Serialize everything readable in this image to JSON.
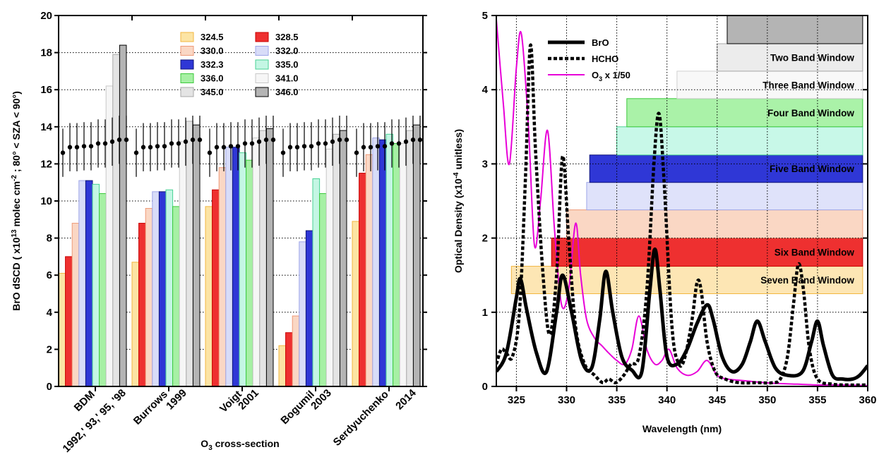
{
  "chart_data": [
    {
      "type": "bar",
      "xlabel": "O3 cross-section",
      "ylabel": "BrO dSCD ( x10^13 molec cm^-2 ; 80° < SZA < 90°)",
      "ylim": [
        0,
        20
      ],
      "yticks": [
        0,
        2,
        4,
        6,
        8,
        10,
        12,
        14,
        16,
        18,
        20
      ],
      "grid": "horizontal dotted",
      "legend_position": "top-center",
      "categories": [
        {
          "name": "BDM",
          "year": "1992,' 93,' 95, '98"
        },
        {
          "name": "Burrows",
          "year": "1999"
        },
        {
          "name": "Voigt",
          "year": "2001"
        },
        {
          "name": "Bogumil",
          "year": "2003"
        },
        {
          "name": "Serdyuchenko",
          "year": "2014"
        }
      ],
      "series": [
        {
          "name": "324.5",
          "fill": "#fce4a4",
          "edge": "#f2b640",
          "values": [
            6.1,
            6.7,
            9.7,
            2.2,
            8.9
          ]
        },
        {
          "name": "328.5",
          "fill": "#ee3030",
          "edge": "#c80000",
          "values": [
            7.0,
            8.8,
            10.6,
            2.9,
            11.5
          ]
        },
        {
          "name": "330.0",
          "fill": "#fad7c4",
          "edge": "#ee9a78",
          "values": [
            8.8,
            9.6,
            11.8,
            3.8,
            12.5
          ]
        },
        {
          "name": "332.0",
          "fill": "#d8dcf8",
          "edge": "#9ea6e8",
          "values": [
            11.1,
            10.5,
            12.9,
            7.8,
            13.4
          ]
        },
        {
          "name": "332.3",
          "fill": "#2f37d6",
          "edge": "#10167a",
          "values": [
            11.1,
            10.5,
            12.9,
            8.4,
            13.3
          ]
        },
        {
          "name": "335.0",
          "fill": "#c4f6e4",
          "edge": "#48d294",
          "values": [
            10.9,
            10.6,
            12.6,
            11.2,
            13.6
          ]
        },
        {
          "name": "336.0",
          "fill": "#a6f0a4",
          "edge": "#3cc93c",
          "values": [
            10.4,
            9.7,
            12.2,
            10.4,
            13.1
          ]
        },
        {
          "name": "341.0",
          "fill": "#f6f6f6",
          "edge": "#c8c8c8",
          "values": [
            16.2,
            13.2,
            13.4,
            12.8,
            13.1
          ]
        },
        {
          "name": "345.0",
          "fill": "#e4e4e4",
          "edge": "#a8a8a8",
          "values": [
            17.9,
            14.3,
            13.8,
            13.6,
            13.8
          ]
        },
        {
          "name": "346.0",
          "fill": "#b4b4b4",
          "edge": "#000000",
          "values": [
            18.4,
            14.1,
            13.9,
            13.8,
            14.1
          ]
        }
      ],
      "markers": {
        "values": [
          [
            12.6,
            12.9,
            12.9,
            12.95,
            12.95,
            13.1,
            13.1,
            13.2,
            13.3,
            13.3
          ],
          [
            12.6,
            12.9,
            12.9,
            12.95,
            12.95,
            13.1,
            13.1,
            13.2,
            13.3,
            13.3
          ],
          [
            12.6,
            12.9,
            12.9,
            12.95,
            12.95,
            13.1,
            13.1,
            13.2,
            13.3,
            13.3
          ],
          [
            12.6,
            12.9,
            12.9,
            12.95,
            12.95,
            13.1,
            13.1,
            13.2,
            13.3,
            13.3
          ],
          [
            12.6,
            12.9,
            12.9,
            12.95,
            12.95,
            13.1,
            13.1,
            13.2,
            13.3,
            13.3
          ]
        ],
        "error": 1.3
      }
    },
    {
      "type": "line",
      "xlabel": "Wavelength (nm)",
      "ylabel": "Optical Density (x10^-4 unitless)",
      "xlim": [
        323,
        360
      ],
      "ylim": [
        0,
        5
      ],
      "xticks": [
        325,
        330,
        335,
        340,
        345,
        350,
        355,
        360
      ],
      "yticks": [
        0,
        1,
        2,
        3,
        4,
        5
      ],
      "grid": "dotted both",
      "legend_position": "top-left",
      "series": [
        {
          "name": "BrO",
          "color": "#000000",
          "style": "solid",
          "x": [
            323.0,
            324.0,
            325.0,
            325.4,
            326.0,
            327.0,
            328.0,
            329.0,
            329.6,
            330.5,
            331.5,
            332.5,
            333.3,
            333.9,
            334.6,
            335.5,
            336.5,
            337.5,
            338.3,
            338.8,
            339.3,
            340.0,
            341.0,
            342.0,
            343.0,
            344.0,
            344.6,
            345.5,
            346.5,
            347.5,
            348.3,
            349.0,
            349.8,
            350.8,
            352.0,
            353.5,
            354.4,
            355.0,
            355.6,
            356.5,
            357.5,
            358.5,
            359.2,
            360.0
          ],
          "y": [
            0.2,
            0.45,
            1.2,
            1.45,
            1.05,
            0.45,
            0.2,
            1.0,
            1.5,
            1.0,
            0.35,
            0.25,
            0.9,
            1.55,
            1.0,
            0.4,
            0.22,
            0.2,
            1.3,
            1.85,
            1.3,
            0.4,
            0.3,
            0.5,
            0.85,
            1.1,
            0.9,
            0.4,
            0.2,
            0.3,
            0.6,
            0.88,
            0.6,
            0.25,
            0.15,
            0.2,
            0.6,
            0.88,
            0.55,
            0.15,
            0.1,
            0.1,
            0.15,
            0.28
          ]
        },
        {
          "name": "HCHO",
          "color": "#000000",
          "style": "dashed",
          "x": [
            323.0,
            323.5,
            324.0,
            324.6,
            325.3,
            325.9,
            326.4,
            326.9,
            327.6,
            328.3,
            329.0,
            329.6,
            330.2,
            330.9,
            331.8,
            332.8,
            333.6,
            334.2,
            334.9,
            335.7,
            336.4,
            337.2,
            338.0,
            338.7,
            339.2,
            339.7,
            340.5,
            341.2,
            341.8,
            342.5,
            343.0,
            343.4,
            344.0,
            344.8,
            345.8,
            347.2,
            349.0,
            350.5,
            351.3,
            352.0,
            352.6,
            353.1,
            353.6,
            354.2,
            355.0,
            356.5,
            358.0,
            360.0
          ],
          "y": [
            0.3,
            0.5,
            0.45,
            0.4,
            1.0,
            2.8,
            4.6,
            3.2,
            1.6,
            0.7,
            1.5,
            3.1,
            2.0,
            0.8,
            0.3,
            0.15,
            0.05,
            0.1,
            0.05,
            0.15,
            0.3,
            0.4,
            1.3,
            3.0,
            3.68,
            2.8,
            0.8,
            0.3,
            0.4,
            0.9,
            1.4,
            1.3,
            0.6,
            0.2,
            0.1,
            0.05,
            0.05,
            0.05,
            0.1,
            0.4,
            1.1,
            1.65,
            1.3,
            0.5,
            0.1,
            0.03,
            0.02,
            0.02
          ]
        },
        {
          "name": "O3 x 1/50",
          "color": "#e800d8",
          "style": "solid",
          "x": [
            323.0,
            323.7,
            324.3,
            325.0,
            325.5,
            326.2,
            326.8,
            327.4,
            328.1,
            328.8,
            329.5,
            330.2,
            330.9,
            331.4,
            332.0,
            332.8,
            333.5,
            334.2,
            335.0,
            335.8,
            336.5,
            337.2,
            338.0,
            338.8,
            339.5,
            340.2,
            341.0,
            342.0,
            343.0,
            344.0,
            345.0,
            346.0,
            347.5,
            349.0,
            351.0,
            353.0,
            355.0,
            357.0,
            360.0
          ],
          "y": [
            4.95,
            3.8,
            3.0,
            4.3,
            4.75,
            3.5,
            1.9,
            2.5,
            3.45,
            2.1,
            1.1,
            1.3,
            2.2,
            1.5,
            0.9,
            0.65,
            0.55,
            0.45,
            0.35,
            0.3,
            0.5,
            0.95,
            0.5,
            0.3,
            0.35,
            0.5,
            0.25,
            0.15,
            0.2,
            0.35,
            0.15,
            0.1,
            0.08,
            0.06,
            0.04,
            0.03,
            0.02,
            0.02,
            0.01
          ]
        }
      ],
      "windows": [
        {
          "label": "Seven Band Window",
          "x_start": 324.5,
          "y_range": [
            1.25,
            1.62
          ],
          "fill": "#fde6b4",
          "edge": "#f2b640"
        },
        {
          "label": "Six Band Window",
          "x_start": 328.5,
          "y_range": [
            1.62,
            2.0
          ],
          "fill": "#ee3030",
          "edge": "#c80000"
        },
        {
          "label": "",
          "x_start": 330.0,
          "y_range": [
            2.0,
            2.38
          ],
          "fill": "#fad7c4",
          "edge": "#ee9a78"
        },
        {
          "label": "",
          "x_start": 332.0,
          "y_range": [
            2.38,
            2.75
          ],
          "fill": "#dfe2fa",
          "edge": "#9ea6e8"
        },
        {
          "label": "Five Band Window",
          "x_start": 332.3,
          "y_range": [
            2.75,
            3.12
          ],
          "fill": "#2f37d6",
          "edge": "#10167a"
        },
        {
          "label": "",
          "x_start": 335.0,
          "y_range": [
            3.12,
            3.5
          ],
          "fill": "#c8f8e8",
          "edge": "#48d294"
        },
        {
          "label": "Four Band Window",
          "x_start": 336.0,
          "y_range": [
            3.5,
            3.88
          ],
          "fill": "#aaf2a8",
          "edge": "#3cc93c"
        },
        {
          "label": "Three Band Window",
          "x_start": 341.0,
          "y_range": [
            3.88,
            4.25
          ],
          "fill": "#f8f8f8",
          "edge": "#d0d0d0"
        },
        {
          "label": "Two Band Window",
          "x_start": 345.0,
          "y_range": [
            4.25,
            4.62
          ],
          "fill": "#ececec",
          "edge": "#a8a8a8"
        },
        {
          "label": "",
          "x_start": 346.0,
          "y_range": [
            4.62,
            5.0
          ],
          "fill": "#b4b4b4",
          "edge": "#000000"
        }
      ],
      "window_end": 359.5
    }
  ]
}
